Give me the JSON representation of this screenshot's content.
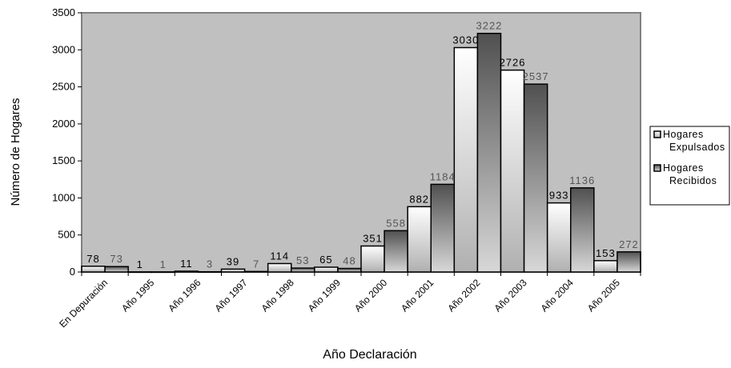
{
  "chart_data": {
    "type": "bar",
    "title": "",
    "xlabel": "Año Declaración",
    "ylabel": "Número de Hogares",
    "ylim": [
      0,
      3500
    ],
    "yticks": [
      0,
      500,
      1000,
      1500,
      2000,
      2500,
      3000,
      3500
    ],
    "grid": false,
    "legend_position": "right",
    "categories": [
      "En Depuración",
      "Año 1995",
      "Año 1996",
      "Año 1997",
      "Año 1998",
      "Año 1999",
      "Año 2000",
      "Año 2001",
      "Año 2002",
      "Año 2003",
      "Año 2004",
      "Año 2005"
    ],
    "series": [
      {
        "name": "Hogares Expulsados",
        "values": [
          78,
          1,
          11,
          39,
          114,
          65,
          351,
          882,
          3030,
          2726,
          933,
          153
        ]
      },
      {
        "name": "Hogares Recibidos",
        "values": [
          73,
          1,
          3,
          7,
          53,
          48,
          558,
          1184,
          3222,
          2537,
          1136,
          272
        ]
      }
    ],
    "legend_labels": [
      [
        "Hogares",
        "Expulsados"
      ],
      [
        "Hogares",
        "Recibidos"
      ]
    ],
    "colors": {
      "plot_background": "#c0c0c0",
      "plot_border": "#808080",
      "expulsados_top": "#ffffff",
      "expulsados_bottom": "#b0b0b0",
      "recibidos_top": "#505050",
      "recibidos_bottom": "#d8d8d8",
      "bar_stroke": "#000000"
    }
  }
}
